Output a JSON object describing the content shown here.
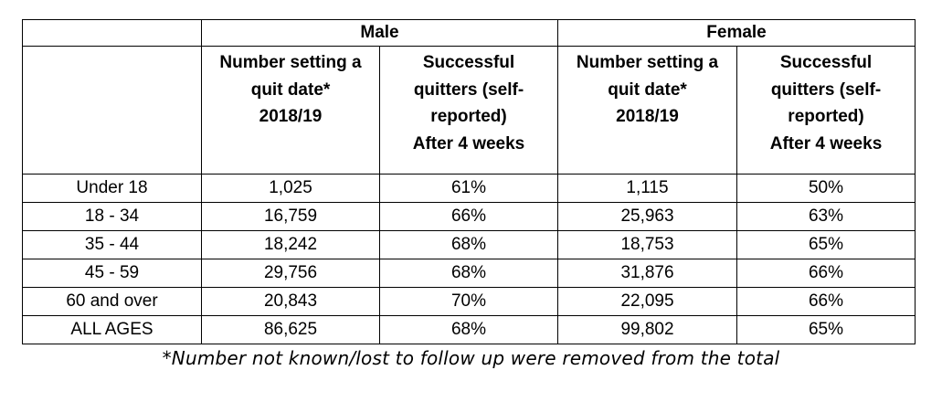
{
  "table": {
    "groups": [
      "",
      "Male",
      "Female"
    ],
    "headers": {
      "label": "",
      "number_setting_quit_date": [
        "Number setting a",
        "quit date*",
        "2018/19"
      ],
      "successful_quitters": [
        "Successful",
        "quitters (self-",
        "reported)",
        "After 4 weeks"
      ]
    },
    "rows": [
      {
        "age": "Under 18",
        "male_number": "1,025",
        "male_success": "61%",
        "female_number": "1,115",
        "female_success": "50%"
      },
      {
        "age": "18 - 34",
        "male_number": "16,759",
        "male_success": "66%",
        "female_number": "25,963",
        "female_success": "63%"
      },
      {
        "age": "35 - 44",
        "male_number": "18,242",
        "male_success": "68%",
        "female_number": "18,753",
        "female_success": "65%"
      },
      {
        "age": "45 - 59",
        "male_number": "29,756",
        "male_success": "68%",
        "female_number": "31,876",
        "female_success": "66%"
      },
      {
        "age": "60 and over",
        "male_number": "20,843",
        "male_success": "70%",
        "female_number": "22,095",
        "female_success": "66%"
      },
      {
        "age": "ALL AGES",
        "male_number": "86,625",
        "male_success": "68%",
        "female_number": "99,802",
        "female_success": "65%"
      }
    ]
  },
  "footnote": "*Number not known/lost to follow up were removed from the total"
}
